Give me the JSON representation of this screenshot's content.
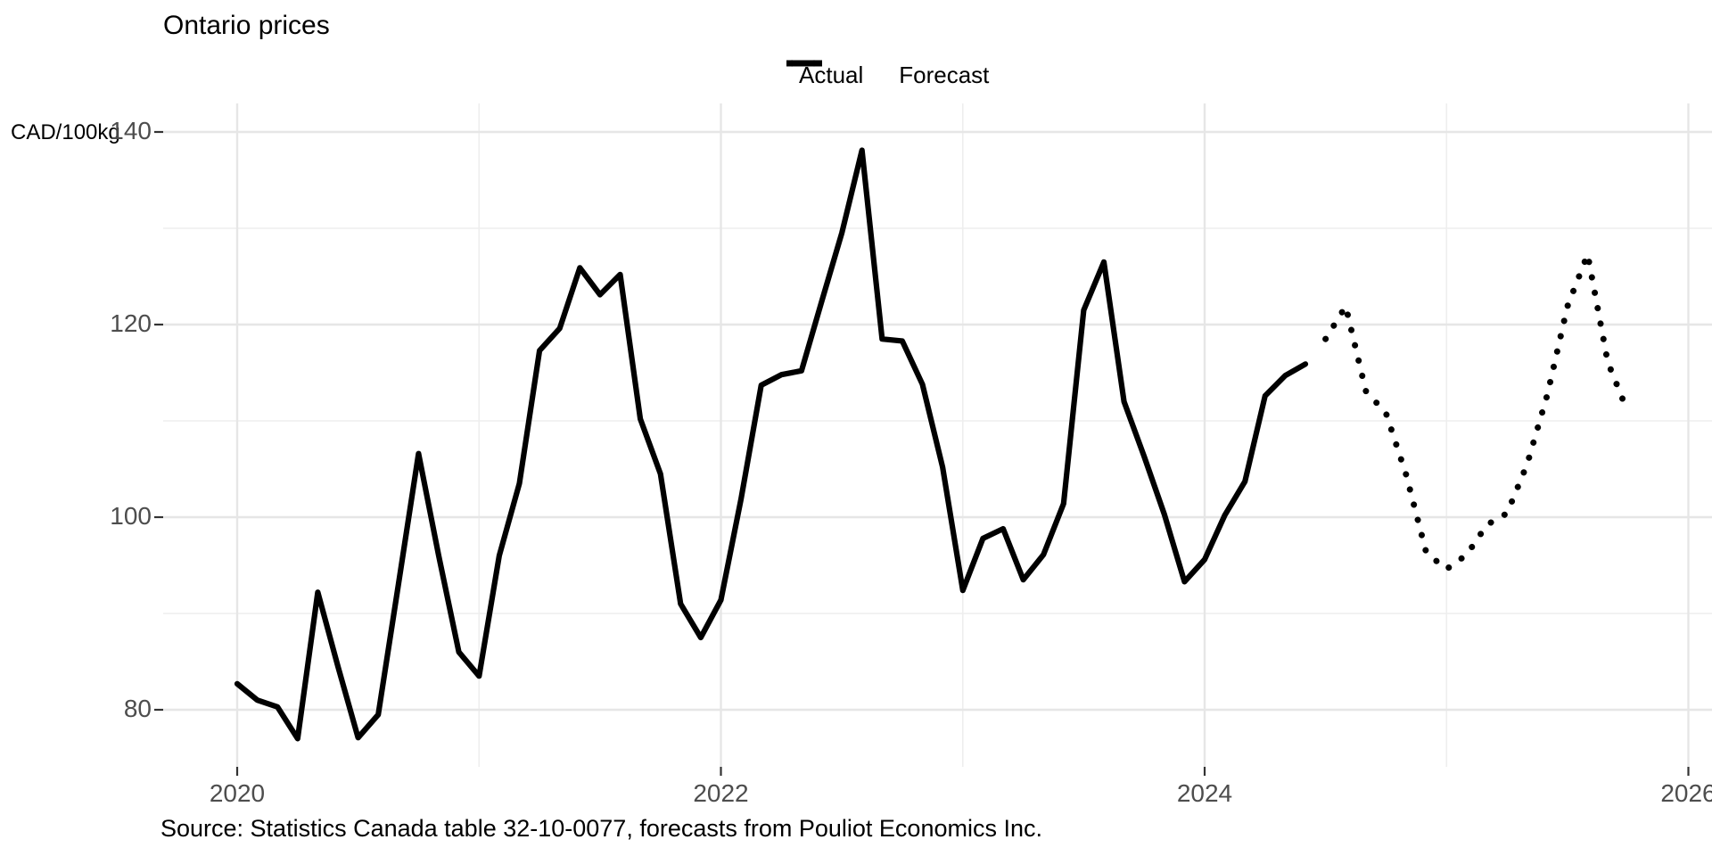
{
  "title": "Ontario prices",
  "axis_unit": "CAD/100kg",
  "caption": "Source: Statistics Canada table 32-10-0077, forecasts from Pouliot Economics Inc.",
  "legend": {
    "actual_label": "Actual",
    "forecast_label": "Forecast"
  },
  "colors": {
    "line": "#000000",
    "grid_major": "#e6e6e6",
    "grid_minor": "#eeeeee",
    "axis_text": "#4d4d4d",
    "tick_mark": "#333333",
    "background": "#ffffff"
  },
  "chart_data": {
    "type": "line",
    "title": "Ontario prices",
    "ylabel": "CAD/100kg",
    "frequency": "monthly",
    "legend_position": "top",
    "grid": true,
    "x_ticks_major": [
      2020,
      2022,
      2024,
      2026
    ],
    "x_ticks_minor": [
      2021,
      2023,
      2025
    ],
    "y_ticks_major": [
      140,
      120,
      100,
      80
    ],
    "y_ticks_minor": [
      130,
      110,
      90
    ],
    "ylim": [
      73.5,
      143
    ],
    "xlim_years": [
      2019.69,
      2026.1
    ],
    "series": [
      {
        "name": "Actual",
        "style": "solid",
        "start": "2020-01",
        "values": [
          82.7,
          81.0,
          80.3,
          77.0,
          92.2,
          84.5,
          77.1,
          79.5,
          93.0,
          106.6,
          96.0,
          86.0,
          83.5,
          96.0,
          103.5,
          117.3,
          119.6,
          125.9,
          123.1,
          125.2,
          110.2,
          104.5,
          91.0,
          87.5,
          91.4,
          101.9,
          113.7,
          114.8,
          115.2,
          122.4,
          129.5,
          138.1,
          118.5,
          118.3,
          113.8,
          105.2,
          92.4,
          97.8,
          98.8,
          93.5,
          96.1,
          101.4,
          121.5,
          126.5,
          112.0,
          106.3,
          100.3,
          93.3,
          95.6,
          100.2,
          103.7,
          112.6,
          114.7,
          115.9
        ]
      },
      {
        "name": "Forecast",
        "style": "dotted",
        "start": "2024-07",
        "values": [
          118.5,
          121.9,
          113.1,
          110.8,
          104.4,
          96.3,
          94.6,
          96.1,
          99.2,
          100.4,
          105.5,
          112.7,
          121.9,
          127.3,
          116.1,
          110.9
        ]
      }
    ]
  }
}
